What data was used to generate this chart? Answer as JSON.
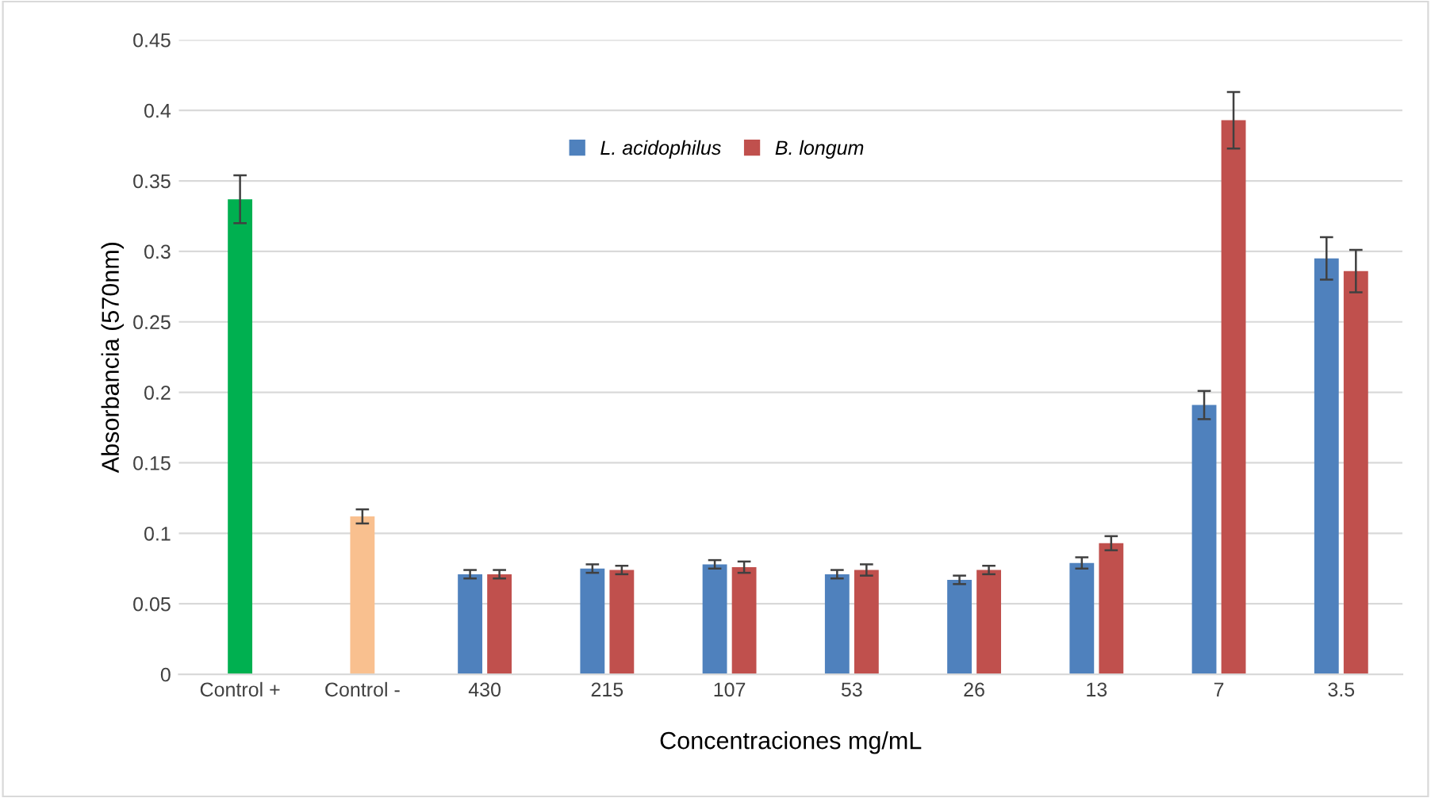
{
  "chart_data": {
    "type": "bar",
    "xlabel": "Concentraciones mg/mL",
    "ylabel": "Absorbancia (570nm)",
    "categories": [
      "Control +",
      "Control -",
      "430",
      "215",
      "107",
      "53",
      "26",
      "13",
      "7",
      "3.5"
    ],
    "series": [
      {
        "colors": [
          "#00b050",
          "#f9c08f",
          null,
          null,
          null,
          null,
          null,
          null,
          null,
          null
        ],
        "values": [
          0.337,
          0.112,
          null,
          null,
          null,
          null,
          null,
          null,
          null,
          null
        ],
        "errors": [
          0.017,
          0.005,
          null,
          null,
          null,
          null,
          null,
          null,
          null,
          null
        ]
      },
      {
        "name": "L. acidophilus",
        "color": "#4f81bd",
        "values": [
          null,
          null,
          0.071,
          0.075,
          0.078,
          0.071,
          0.067,
          0.079,
          0.191,
          0.295
        ],
        "errors": [
          null,
          null,
          0.003,
          0.003,
          0.003,
          0.003,
          0.003,
          0.004,
          0.01,
          0.015
        ]
      },
      {
        "name": "B. longum",
        "color": "#c0504d",
        "values": [
          null,
          null,
          0.071,
          0.074,
          0.076,
          0.074,
          0.074,
          0.093,
          0.393,
          0.286
        ],
        "errors": [
          null,
          null,
          0.003,
          0.003,
          0.004,
          0.004,
          0.003,
          0.005,
          0.02,
          0.015
        ]
      }
    ],
    "ylim": [
      0,
      0.45
    ],
    "yticks": [
      {
        "value": 0,
        "label": "0"
      },
      0.05,
      {
        "value": 0.1,
        "label": "0.1"
      },
      0.15,
      {
        "value": 0.2,
        "label": "0.2"
      },
      0.25,
      {
        "value": 0.3,
        "label": "0.3"
      },
      0.35,
      {
        "value": 0.4,
        "label": "0.4"
      },
      0.45
    ],
    "grid": "y",
    "legend": "top"
  }
}
